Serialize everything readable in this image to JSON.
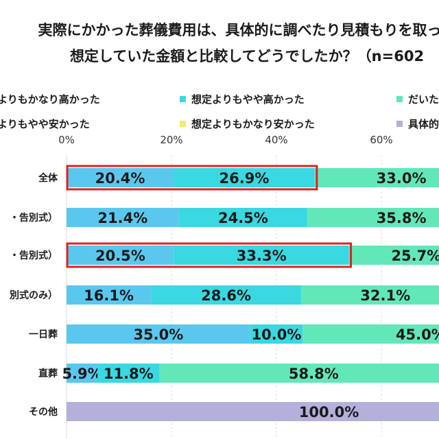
{
  "title_lines": [
    "実際にかかった葬儀費用は、具体的に調べたり見積もりを取った",
    "想定していた金額と比較してどうでしたか？（n=602"
  ],
  "legend": [
    {
      "label": "よりもかなり高かった",
      "color": "#1e4f8f"
    },
    {
      "label": "想定よりもやや高かった",
      "color": "#3ad8e0"
    },
    {
      "label": "だいた",
      "color": "#62e8b8"
    },
    {
      "label": "よりもやや安かった",
      "color": "#1e4f8f"
    },
    {
      "label": "想定よりもかなり安かった",
      "color": "#f5ec6a"
    },
    {
      "label": "具体的",
      "color": "#b4b0dc"
    }
  ],
  "chart_data": {
    "type": "bar",
    "orientation": "horizontal",
    "stacked": true,
    "xlim": [
      0,
      100
    ],
    "x_ticks": [
      "0%",
      "20%",
      "40%",
      "60%"
    ],
    "categories": [
      "全体",
      "・告別式）",
      "・告別式）",
      "別式のみ）",
      "一日葬",
      "直葬",
      "その他"
    ],
    "series": [
      {
        "name": "よりもかなり高かった",
        "color": "#5ac8ee",
        "values": [
          20.4,
          21.4,
          20.5,
          16.1,
          35.0,
          5.9,
          0
        ]
      },
      {
        "name": "想定よりもやや高かった",
        "color": "#3ad8e0",
        "values": [
          26.9,
          24.5,
          33.3,
          28.6,
          10.0,
          11.8,
          0
        ]
      },
      {
        "name": "だいた",
        "color": "#62e8b8",
        "values": [
          33.0,
          35.8,
          25.7,
          32.1,
          45.0,
          58.8,
          0
        ]
      },
      {
        "name": "具体的",
        "color": "#b4b0dc",
        "values": [
          0,
          0,
          0,
          0,
          0,
          0,
          100.0
        ]
      }
    ],
    "value_labels": [
      [
        "20.4%",
        "26.9%",
        "33.0%",
        ""
      ],
      [
        "21.4%",
        "24.5%",
        "35.8%",
        ""
      ],
      [
        "20.5%",
        "33.3%",
        "25.7%",
        ""
      ],
      [
        "16.1%",
        "28.6%",
        "32.1%",
        ""
      ],
      [
        "35.0%",
        "10.0%",
        "45.0%",
        ""
      ],
      [
        "5.9%",
        "11.8%",
        "58.8%",
        ""
      ],
      [
        "",
        "",
        "",
        "100.0%"
      ]
    ],
    "highlights": [
      {
        "row": 0,
        "from_series": 0,
        "to_series": 1,
        "color": "#e02020"
      },
      {
        "row": 2,
        "from_series": 0,
        "to_series": 1,
        "color": "#e02020"
      }
    ],
    "gridlines": true
  }
}
